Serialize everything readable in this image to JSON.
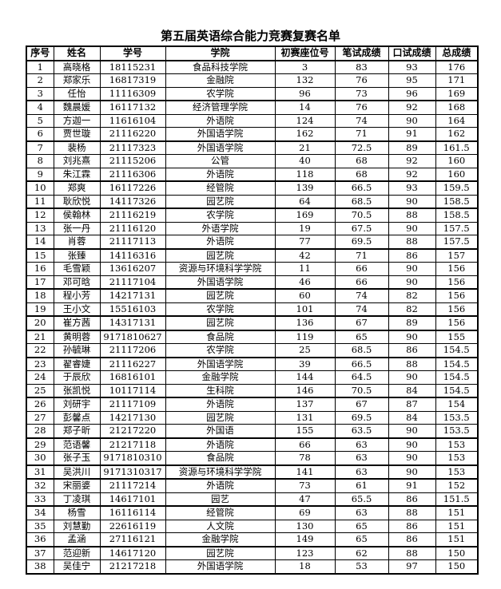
{
  "title": "第五届英语综合能力竞赛复赛名单",
  "columns": [
    "序号",
    "姓名",
    "学号",
    "学院",
    "初赛座位号",
    "笔试成绩",
    "口试成绩",
    "总成绩"
  ],
  "rows": [
    [
      "1",
      "高晓格",
      "18115231",
      "食品科技学院",
      "3",
      "83",
      "93",
      "176"
    ],
    [
      "2",
      "郑家乐",
      "16817319",
      "金融院",
      "132",
      "76",
      "95",
      "171"
    ],
    [
      "3",
      "任怡",
      "11116309",
      "农学院",
      "96",
      "73",
      "96",
      "169"
    ],
    [
      "4",
      "魏晨媛",
      "16117132",
      "经济管理学院",
      "14",
      "76",
      "92",
      "168"
    ],
    [
      "5",
      "方迦一",
      "11616104",
      "外语院",
      "124",
      "74",
      "90",
      "164"
    ],
    [
      "6",
      "贾世璇",
      "21116220",
      "外国语学院",
      "162",
      "71",
      "91",
      "162"
    ],
    [
      "7",
      "裴杨",
      "21117323",
      "外国语学院",
      "21",
      "72.5",
      "89",
      "161.5"
    ],
    [
      "8",
      "刘兆熹",
      "21115206",
      "公管",
      "40",
      "68",
      "92",
      "160"
    ],
    [
      "9",
      "朱江霖",
      "21116306",
      "外语院",
      "118",
      "68",
      "92",
      "160"
    ],
    [
      "10",
      "郑爽",
      "16117226",
      "经管院",
      "139",
      "66.5",
      "93",
      "159.5"
    ],
    [
      "11",
      "耿欣悦",
      "14117326",
      "园艺院",
      "64",
      "68.5",
      "90",
      "158.5"
    ],
    [
      "12",
      "侯翰林",
      "21116219",
      "农学院",
      "169",
      "70.5",
      "88",
      "158.5"
    ],
    [
      "13",
      "张一丹",
      "21116120",
      "外语学院",
      "19",
      "67.5",
      "90",
      "157.5"
    ],
    [
      "14",
      "肖蓉",
      "21117113",
      "外语院",
      "77",
      "69.5",
      "88",
      "157.5"
    ],
    [
      "15",
      "张臻",
      "14116316",
      "园艺院",
      "42",
      "71",
      "86",
      "157"
    ],
    [
      "16",
      "毛雪颖",
      "13616207",
      "资源与环境科学学院",
      "11",
      "66",
      "90",
      "156"
    ],
    [
      "17",
      "邓可晗",
      "21117104",
      "外国语学院",
      "46",
      "66",
      "90",
      "156"
    ],
    [
      "18",
      "程小芳",
      "14217131",
      "园艺院",
      "60",
      "74",
      "82",
      "156"
    ],
    [
      "19",
      "王小文",
      "15516103",
      "农学院",
      "101",
      "74",
      "82",
      "156"
    ],
    [
      "20",
      "崔方茜",
      "14317131",
      "园艺院",
      "136",
      "67",
      "89",
      "156"
    ],
    [
      "21",
      "黄明蓉",
      "9171810627",
      "食品院",
      "119",
      "65",
      "90",
      "155"
    ],
    [
      "22",
      "孙毓琳",
      "21117206",
      "农学院",
      "25",
      "68.5",
      "86",
      "154.5"
    ],
    [
      "23",
      "翟睿婕",
      "21116227",
      "外国语学院",
      "39",
      "66.5",
      "88",
      "154.5"
    ],
    [
      "24",
      "于辰欣",
      "16816101",
      "金融学院",
      "144",
      "64.5",
      "90",
      "154.5"
    ],
    [
      "25",
      "张凯悦",
      "10117114",
      "生科院",
      "146",
      "70.5",
      "84",
      "154.5"
    ],
    [
      "26",
      "刘研宇",
      "21117109",
      "外语院",
      "137",
      "67",
      "87",
      "154"
    ],
    [
      "27",
      "彭馨点",
      "14217130",
      "园艺院",
      "131",
      "69.5",
      "84",
      "153.5"
    ],
    [
      "28",
      "郑子昕",
      "21217220",
      "外国语",
      "155",
      "63.5",
      "90",
      "153.5"
    ],
    [
      "29",
      "范语馨",
      "21217118",
      "外语院",
      "66",
      "63",
      "90",
      "153"
    ],
    [
      "30",
      "张子玉",
      "9171810310",
      "食品院",
      "78",
      "63",
      "90",
      "153"
    ],
    [
      "31",
      "吴洪川",
      "9171310317",
      "资源与环境科学学院",
      "141",
      "63",
      "90",
      "153"
    ],
    [
      "32",
      "宋丽婆",
      "21117214",
      "外语院",
      "73",
      "61",
      "91",
      "152"
    ],
    [
      "33",
      "丁凌琪",
      "14617101",
      "园艺",
      "47",
      "65.5",
      "86",
      "151.5"
    ],
    [
      "34",
      "杨雪",
      "16116114",
      "经管院",
      "69",
      "63",
      "88",
      "151"
    ],
    [
      "35",
      "刘慧勤",
      "22616119",
      "人文院",
      "130",
      "65",
      "86",
      "151"
    ],
    [
      "36",
      "孟涵",
      "27116121",
      "金融学院",
      "149",
      "65",
      "86",
      "151"
    ],
    [
      "37",
      "范迎新",
      "14617120",
      "园艺院",
      "123",
      "62",
      "88",
      "150"
    ],
    [
      "38",
      "吴佳宁",
      "21217218",
      "外国语学院",
      "18",
      "53",
      "97",
      "150"
    ]
  ]
}
